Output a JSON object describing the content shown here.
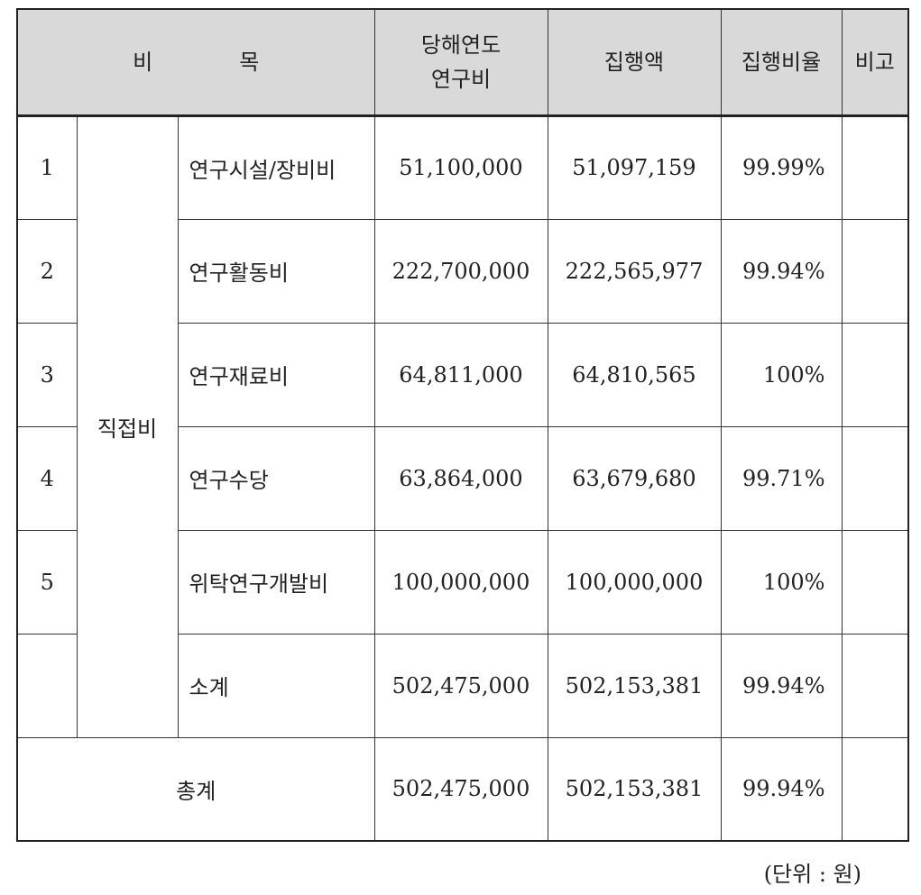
{
  "header": {
    "item_part1": "비",
    "item_part2": "목",
    "budget_line1": "당해연도",
    "budget_line2": "연구비",
    "spent": "집행액",
    "rate": "집행비율",
    "note": "비고"
  },
  "category": "직접비",
  "rows": [
    {
      "no": "1",
      "item": "연구시설/장비비",
      "budget": "51,100,000",
      "spent": "51,097,159",
      "rate": "99.99%",
      "note": ""
    },
    {
      "no": "2",
      "item": "연구활동비",
      "budget": "222,700,000",
      "spent": "222,565,977",
      "rate": "99.94%",
      "note": ""
    },
    {
      "no": "3",
      "item": "연구재료비",
      "budget": "64,811,000",
      "spent": "64,810,565",
      "rate": "100%",
      "note": ""
    },
    {
      "no": "4",
      "item": "연구수당",
      "budget": "63,864,000",
      "spent": "63,679,680",
      "rate": "99.71%",
      "note": ""
    },
    {
      "no": "5",
      "item": "위탁연구개발비",
      "budget": "100,000,000",
      "spent": "100,000,000",
      "rate": "100%",
      "note": ""
    }
  ],
  "subtotal": {
    "label": "소계",
    "budget": "502,475,000",
    "spent": "502,153,381",
    "rate": "99.94%"
  },
  "total": {
    "label": "총계",
    "budget": "502,475,000",
    "spent": "502,153,381",
    "rate": "99.94%"
  },
  "unit": "(단위 : 원)"
}
